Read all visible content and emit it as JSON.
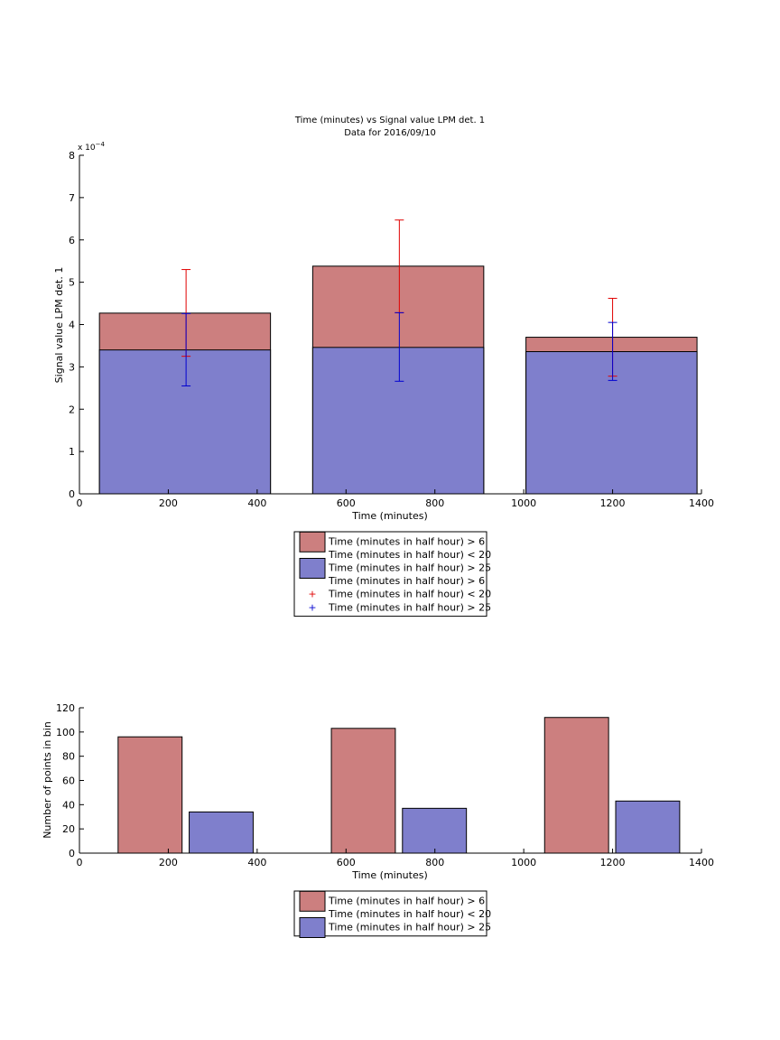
{
  "chart_data": [
    {
      "type": "bar",
      "title": "Time (minutes) vs Signal value LPM det. 1",
      "subtitle": "Data for 2016/09/10",
      "xlabel": "Time (minutes)",
      "ylabel": "Signal value LPM det. 1",
      "exponent_label": "x 10",
      "exponent_power": "−4",
      "xlim": [
        0,
        1400
      ],
      "ylim": [
        0,
        8
      ],
      "xticks": [
        0,
        200,
        400,
        600,
        800,
        1000,
        1200,
        1400
      ],
      "yticks": [
        0,
        1,
        2,
        3,
        4,
        5,
        6,
        7,
        8
      ],
      "bar_ranges": [
        [
          45,
          430
        ],
        [
          525,
          910
        ],
        [
          1005,
          1390
        ]
      ],
      "categories": [
        240,
        720,
        1200
      ],
      "series": [
        {
          "values": [
            4.27,
            5.38,
            3.7
          ],
          "error_low": [
            3.25,
            4.28,
            2.78
          ],
          "error_high": [
            5.3,
            6.47,
            4.62
          ],
          "color": "#cc7f7f",
          "error_color": "#e00000"
        },
        {
          "values": [
            3.4,
            3.46,
            3.36
          ],
          "error_low": [
            2.55,
            2.66,
            2.68
          ],
          "error_high": [
            4.26,
            4.28,
            4.05
          ],
          "color": "#7f7fcc",
          "error_color": "#0000d0"
        }
      ],
      "legend": [
        {
          "label": "Time (minutes in half hour) > 6",
          "kind": "patch",
          "color": "#cc7f7f"
        },
        {
          "label": "Time (minutes in half hour) < 20",
          "kind": "none"
        },
        {
          "label": "Time (minutes in half hour) > 25",
          "kind": "patch",
          "color": "#7f7fcc"
        },
        {
          "label": "Time (minutes in half hour) > 6",
          "kind": "none"
        },
        {
          "label": "Time (minutes in half hour) < 20",
          "kind": "plus",
          "color": "#e00000"
        },
        {
          "label": "Time (minutes in half hour) > 25",
          "kind": "plus",
          "color": "#0000d0"
        }
      ],
      "legend_position": "below"
    },
    {
      "type": "bar",
      "xlabel": "Time (minutes)",
      "ylabel": "Number of points in bin",
      "xlim": [
        0,
        1400
      ],
      "ylim": [
        0,
        120
      ],
      "xticks": [
        0,
        200,
        400,
        600,
        800,
        1000,
        1200,
        1400
      ],
      "yticks": [
        0,
        20,
        40,
        60,
        80,
        100,
        120
      ],
      "series": [
        {
          "bar_ranges": [
            [
              87,
              231
            ],
            [
              567,
              711
            ],
            [
              1047,
              1191
            ]
          ],
          "values": [
            96,
            103,
            112
          ],
          "color": "#cc7f7f"
        },
        {
          "bar_ranges": [
            [
              247,
              391
            ],
            [
              727,
              871
            ],
            [
              1207,
              1351
            ]
          ],
          "values": [
            34,
            37,
            43
          ],
          "color": "#7f7fcc"
        }
      ],
      "legend": [
        {
          "label": "Time (minutes in half hour) > 6",
          "kind": "patch",
          "color": "#cc7f7f"
        },
        {
          "label": "Time (minutes in half hour) < 20",
          "kind": "none"
        },
        {
          "label": "Time (minutes in half hour) > 25",
          "kind": "patch",
          "color": "#7f7fcc"
        }
      ],
      "legend_position": "below"
    }
  ]
}
